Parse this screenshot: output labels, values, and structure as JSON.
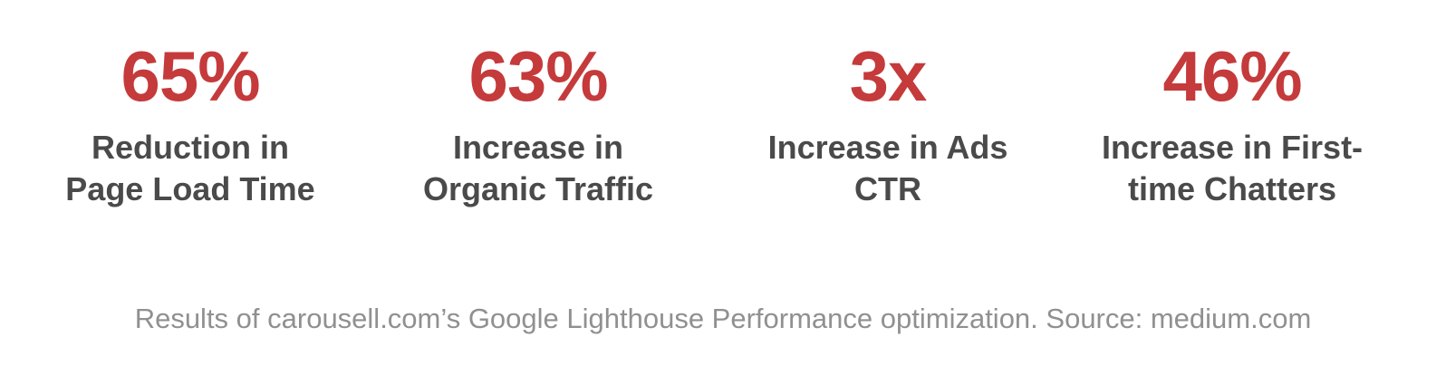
{
  "accent_color": "#c53a3b",
  "label_color": "#4a4a4a",
  "caption_color": "#909090",
  "stats": [
    {
      "value": "65%",
      "label_lines": [
        "Reduction in",
        "Page Load Time"
      ]
    },
    {
      "value": "63%",
      "label_lines": [
        "Increase in",
        "Organic Traffic"
      ]
    },
    {
      "value": "3x",
      "label_lines": [
        "Increase in Ads",
        "CTR"
      ]
    },
    {
      "value": "46%",
      "label_lines": [
        "Increase in First-",
        "time Chatters"
      ]
    }
  ],
  "caption": "Results of carousell.com’s Google Lighthouse Performance optimization. Source: medium.com"
}
